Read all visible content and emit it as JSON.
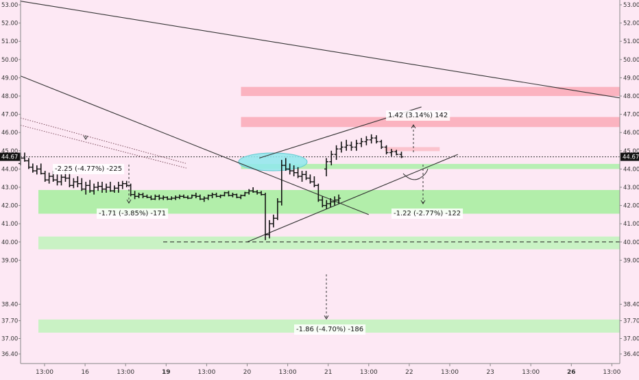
{
  "chart_data": {
    "type": "candlestick",
    "title": "",
    "current_price_label": "44.67",
    "y_ticks": [
      "53.00",
      "52.00",
      "51.00",
      "50.00",
      "49.00",
      "48.00",
      "47.00",
      "46.00",
      "45.00",
      "44.00",
      "43.00",
      "42.00",
      "41.00",
      "40.00",
      "39.00",
      "38.40",
      "37.70",
      "37.00",
      "36.40"
    ],
    "x_ticks": [
      {
        "label": "13:00",
        "bold": false,
        "pos": 0
      },
      {
        "label": "16",
        "bold": false,
        "pos": 1
      },
      {
        "label": "13:00",
        "bold": false,
        "pos": 2
      },
      {
        "label": "19",
        "bold": true,
        "pos": 3
      },
      {
        "label": "13:00",
        "bold": false,
        "pos": 4
      },
      {
        "label": "20",
        "bold": false,
        "pos": 5
      },
      {
        "label": "13:00",
        "bold": false,
        "pos": 6
      },
      {
        "label": "21",
        "bold": false,
        "pos": 7
      },
      {
        "label": "13:00",
        "bold": false,
        "pos": 8
      },
      {
        "label": "22",
        "bold": false,
        "pos": 9
      },
      {
        "label": "13:00",
        "bold": false,
        "pos": 10
      },
      {
        "label": "23",
        "bold": false,
        "pos": 11
      },
      {
        "label": "13:00",
        "bold": false,
        "pos": 12
      },
      {
        "label": "26",
        "bold": true,
        "pos": 13
      },
      {
        "label": "13:00",
        "bold": false,
        "pos": 14
      }
    ],
    "zones": [
      {
        "kind": "resistance",
        "from": 48.0,
        "to": 48.5,
        "start": 5.0,
        "color": "#fbb3c0"
      },
      {
        "kind": "resistance",
        "from": 46.3,
        "to": 46.85,
        "start": 5.0,
        "color": "#fbb3c0"
      },
      {
        "kind": "resistance",
        "from": 44.98,
        "to": 45.2,
        "start": 8.55,
        "end": 9.65,
        "color": "#fbc3cd"
      },
      {
        "kind": "support",
        "from": 44.0,
        "to": 44.28,
        "start": 5.0,
        "color": "#b8efb4"
      },
      {
        "kind": "support",
        "from": 41.55,
        "to": 42.85,
        "start": 0.0,
        "color": "#b2eeaa"
      },
      {
        "kind": "support",
        "from": 39.6,
        "to": 40.3,
        "start": 0.0,
        "color": "#c9f2c4"
      },
      {
        "kind": "support",
        "from": 37.23,
        "to": 37.75,
        "start": 0.0,
        "color": "#c9f2c4"
      }
    ],
    "dashed_level": 40.0,
    "candles": [
      [
        44.3,
        44.9,
        44.2,
        44.6
      ],
      [
        44.6,
        44.9,
        44.4,
        44.45
      ],
      [
        44.45,
        44.6,
        44.0,
        44.1
      ],
      [
        44.1,
        44.3,
        43.8,
        43.9
      ],
      [
        43.9,
        44.2,
        43.7,
        44.0
      ],
      [
        44.0,
        44.3,
        43.7,
        43.75
      ],
      [
        43.75,
        43.9,
        43.3,
        43.4
      ],
      [
        43.4,
        43.8,
        43.2,
        43.6
      ],
      [
        43.6,
        43.9,
        43.3,
        43.4
      ],
      [
        43.4,
        43.7,
        43.1,
        43.3
      ],
      [
        43.3,
        43.7,
        43.1,
        43.55
      ],
      [
        43.55,
        44.0,
        43.3,
        43.5
      ],
      [
        43.5,
        43.8,
        43.0,
        43.1
      ],
      [
        43.1,
        43.5,
        42.95,
        43.3
      ],
      [
        43.3,
        43.6,
        43.0,
        43.2
      ],
      [
        43.2,
        43.5,
        42.8,
        42.9
      ],
      [
        42.9,
        43.3,
        42.6,
        43.1
      ],
      [
        43.1,
        43.4,
        42.7,
        42.8
      ],
      [
        42.8,
        43.2,
        42.6,
        43.0
      ],
      [
        43.0,
        43.3,
        42.8,
        43.05
      ],
      [
        43.05,
        43.3,
        42.7,
        42.9
      ],
      [
        42.9,
        43.2,
        42.7,
        43.0
      ],
      [
        43.0,
        43.3,
        42.75,
        42.8
      ],
      [
        42.8,
        43.1,
        42.7,
        42.95
      ],
      [
        42.95,
        43.3,
        42.7,
        43.1
      ],
      [
        43.1,
        43.35,
        42.9,
        43.2
      ],
      [
        43.2,
        43.35,
        43.0,
        43.1
      ],
      [
        43.1,
        43.2,
        42.5,
        42.6
      ],
      [
        42.6,
        42.8,
        42.35,
        42.5
      ],
      [
        42.5,
        42.7,
        42.4,
        42.6
      ],
      [
        42.6,
        42.7,
        42.4,
        42.5
      ],
      [
        42.5,
        42.6,
        42.4,
        42.45
      ],
      [
        42.45,
        42.55,
        42.3,
        42.35
      ],
      [
        42.35,
        42.6,
        42.3,
        42.5
      ],
      [
        42.5,
        42.6,
        42.3,
        42.4
      ],
      [
        42.4,
        42.55,
        42.3,
        42.45
      ],
      [
        42.45,
        42.5,
        42.3,
        42.35
      ],
      [
        42.35,
        42.5,
        42.3,
        42.4
      ],
      [
        42.4,
        42.55,
        42.3,
        42.45
      ],
      [
        42.45,
        42.6,
        42.35,
        42.5
      ],
      [
        42.5,
        42.6,
        42.4,
        42.45
      ],
      [
        42.45,
        42.55,
        42.35,
        42.4
      ],
      [
        42.4,
        42.6,
        42.4,
        42.55
      ],
      [
        42.55,
        42.7,
        42.4,
        42.5
      ],
      [
        42.5,
        42.6,
        42.3,
        42.35
      ],
      [
        42.35,
        42.5,
        42.2,
        42.4
      ],
      [
        42.4,
        42.6,
        42.3,
        42.55
      ],
      [
        42.55,
        42.7,
        42.4,
        42.6
      ],
      [
        42.6,
        42.7,
        42.45,
        42.5
      ],
      [
        42.5,
        42.6,
        42.4,
        42.55
      ],
      [
        42.55,
        42.75,
        42.5,
        42.7
      ],
      [
        42.7,
        42.8,
        42.5,
        42.55
      ],
      [
        42.55,
        42.7,
        42.45,
        42.6
      ],
      [
        42.6,
        42.65,
        42.4,
        42.45
      ],
      [
        42.45,
        42.6,
        42.35,
        42.55
      ],
      [
        42.55,
        42.75,
        42.5,
        42.7
      ],
      [
        42.7,
        42.9,
        42.6,
        42.8
      ],
      [
        42.8,
        43.0,
        42.7,
        42.75
      ],
      [
        42.75,
        42.85,
        42.6,
        42.7
      ],
      [
        42.7,
        42.8,
        42.55,
        42.6
      ],
      [
        42.6,
        42.7,
        40.1,
        40.4
      ],
      [
        40.4,
        41.2,
        40.2,
        41.0
      ],
      [
        41.0,
        41.5,
        40.8,
        41.3
      ],
      [
        41.3,
        42.4,
        41.2,
        42.2
      ],
      [
        42.2,
        44.5,
        42.0,
        44.2
      ],
      [
        44.2,
        44.6,
        43.9,
        44.0
      ],
      [
        44.0,
        44.3,
        43.7,
        43.9
      ],
      [
        43.9,
        44.2,
        43.6,
        43.8
      ],
      [
        43.8,
        44.1,
        43.5,
        43.6
      ],
      [
        43.6,
        43.9,
        43.3,
        43.7
      ],
      [
        43.7,
        43.9,
        43.4,
        43.5
      ],
      [
        43.5,
        43.7,
        43.2,
        43.3
      ],
      [
        43.3,
        43.6,
        43.0,
        43.1
      ],
      [
        43.1,
        43.2,
        42.2,
        42.3
      ],
      [
        42.3,
        42.5,
        41.9,
        42.0
      ],
      [
        42.0,
        42.3,
        41.8,
        42.1
      ],
      [
        42.1,
        42.4,
        41.9,
        42.2
      ],
      [
        42.2,
        42.5,
        42.0,
        42.3
      ],
      [
        42.3,
        42.6,
        42.1,
        42.4
      ],
      [
        44.0,
        44.6,
        43.6,
        44.4
      ],
      [
        44.4,
        45.0,
        44.2,
        44.8
      ],
      [
        44.8,
        45.3,
        44.5,
        45.1
      ],
      [
        45.1,
        45.5,
        44.9,
        45.2
      ],
      [
        45.2,
        45.6,
        45.0,
        45.3
      ],
      [
        45.3,
        45.5,
        45.0,
        45.2
      ],
      [
        45.2,
        45.6,
        45.0,
        45.4
      ],
      [
        45.4,
        45.7,
        45.2,
        45.5
      ],
      [
        45.5,
        45.8,
        45.3,
        45.6
      ],
      [
        45.6,
        45.9,
        45.4,
        45.7
      ],
      [
        45.7,
        45.85,
        45.4,
        45.5
      ],
      [
        45.5,
        45.6,
        45.1,
        45.2
      ],
      [
        45.2,
        45.3,
        44.8,
        44.9
      ],
      [
        44.9,
        45.1,
        44.7,
        44.95
      ],
      [
        44.95,
        45.05,
        44.75,
        44.8
      ],
      [
        44.8,
        44.95,
        44.6,
        44.67
      ]
    ],
    "trend_lines": [
      {
        "style": "solid",
        "from": [
          -0.6,
          53.2
        ],
        "to": [
          14.6,
          47.9
        ]
      },
      {
        "style": "solid",
        "from": [
          -1.0,
          49.1
        ],
        "to": [
          8.0,
          41.5
        ]
      },
      {
        "style": "solid",
        "from": [
          5.0,
          40.0
        ],
        "to": [
          10.2,
          44.8
        ]
      },
      {
        "style": "solid",
        "from": [
          5.3,
          44.6
        ],
        "to": [
          9.3,
          47.4
        ]
      },
      {
        "style": "dotted",
        "from": [
          -1.0,
          46.8
        ],
        "to": [
          3.5,
          44.3
        ]
      },
      {
        "style": "dotted",
        "from": [
          -1.0,
          46.4
        ],
        "to": [
          3.5,
          44.05
        ]
      }
    ],
    "annotations": [
      {
        "text": "-2.25 (-4.77%) -225",
        "arrow": "down"
      },
      {
        "text": "-1.71 (-3.85%) -171",
        "arrow": "down"
      },
      {
        "text": "1.42 (3.14%) 142",
        "arrow": "up"
      },
      {
        "text": "-1.22 (-2.77%) -122",
        "arrow": "down"
      },
      {
        "text": "-1.86 (-4.70%) -186",
        "arrow": "down"
      }
    ],
    "grid": false,
    "legend": "none",
    "ylim": [
      36.0,
      53.4
    ]
  }
}
